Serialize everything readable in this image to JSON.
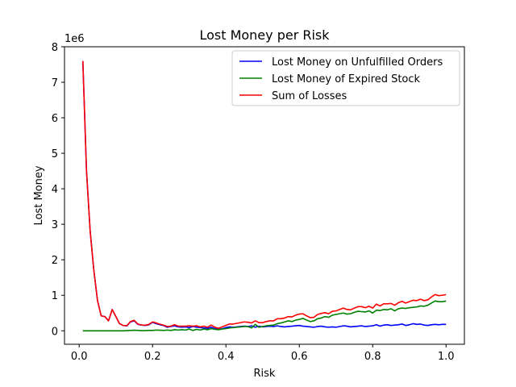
{
  "chart_data": {
    "type": "line",
    "title": "Lost Money per Risk",
    "xlabel": "Risk",
    "ylabel": "Lost Money",
    "y_offset_label": "1e6",
    "xlim": [
      -0.04,
      1.05
    ],
    "ylim": [
      -0.38,
      8.0
    ],
    "x_ticks": [
      0.0,
      0.2,
      0.4,
      0.6,
      0.8,
      1.0
    ],
    "x_tick_labels": [
      "0.0",
      "0.2",
      "0.4",
      "0.6",
      "0.8",
      "1.0"
    ],
    "y_ticks": [
      0,
      1,
      2,
      3,
      4,
      5,
      6,
      7,
      8
    ],
    "y_tick_labels": [
      "0",
      "1",
      "2",
      "3",
      "4",
      "5",
      "6",
      "7",
      "8"
    ],
    "grid": false,
    "legend_position": "top-right",
    "x": [
      0.01,
      0.02,
      0.03,
      0.04,
      0.05,
      0.06,
      0.07,
      0.08,
      0.09,
      0.1,
      0.11,
      0.12,
      0.13,
      0.14,
      0.15,
      0.16,
      0.17,
      0.18,
      0.19,
      0.2,
      0.21,
      0.22,
      0.23,
      0.24,
      0.25,
      0.26,
      0.27,
      0.28,
      0.29,
      0.3,
      0.31,
      0.32,
      0.33,
      0.34,
      0.35,
      0.36,
      0.37,
      0.38,
      0.39,
      0.4,
      0.41,
      0.42,
      0.43,
      0.44,
      0.45,
      0.46,
      0.47,
      0.48,
      0.49,
      0.5,
      0.51,
      0.52,
      0.53,
      0.54,
      0.55,
      0.56,
      0.57,
      0.58,
      0.59,
      0.6,
      0.61,
      0.62,
      0.63,
      0.64,
      0.65,
      0.66,
      0.67,
      0.68,
      0.69,
      0.7,
      0.71,
      0.72,
      0.73,
      0.74,
      0.75,
      0.76,
      0.77,
      0.78,
      0.79,
      0.8,
      0.81,
      0.82,
      0.83,
      0.84,
      0.85,
      0.86,
      0.87,
      0.88,
      0.89,
      0.9,
      0.91,
      0.92,
      0.93,
      0.94,
      0.95,
      0.96,
      0.97,
      0.98,
      0.99,
      1.0
    ],
    "series": [
      {
        "name": "Lost Money on Unfulfilled Orders",
        "color": "#0000ff",
        "values": [
          7.6,
          4.5,
          2.8,
          1.7,
          0.85,
          0.42,
          0.4,
          0.28,
          0.6,
          0.4,
          0.2,
          0.15,
          0.14,
          0.25,
          0.28,
          0.18,
          0.16,
          0.15,
          0.17,
          0.24,
          0.2,
          0.17,
          0.15,
          0.1,
          0.12,
          0.14,
          0.11,
          0.1,
          0.11,
          0.09,
          0.12,
          0.1,
          0.09,
          0.08,
          0.07,
          0.1,
          0.06,
          0.04,
          0.06,
          0.09,
          0.11,
          0.1,
          0.11,
          0.12,
          0.13,
          0.12,
          0.14,
          0.1,
          0.13,
          0.11,
          0.12,
          0.13,
          0.12,
          0.14,
          0.12,
          0.11,
          0.12,
          0.13,
          0.14,
          0.15,
          0.13,
          0.12,
          0.11,
          0.1,
          0.12,
          0.13,
          0.11,
          0.1,
          0.11,
          0.1,
          0.12,
          0.14,
          0.13,
          0.11,
          0.12,
          0.13,
          0.14,
          0.12,
          0.13,
          0.14,
          0.17,
          0.13,
          0.16,
          0.17,
          0.15,
          0.16,
          0.17,
          0.19,
          0.15,
          0.17,
          0.2,
          0.18,
          0.19,
          0.16,
          0.15,
          0.17,
          0.18,
          0.17,
          0.18,
          0.18
        ]
      },
      {
        "name": "Lost Money of Expired Stock",
        "color": "#008000",
        "values": [
          0.0,
          0.0,
          0.0,
          0.0,
          0.0,
          0.0,
          0.0,
          0.0,
          0.0,
          0.0,
          0.0,
          0.0,
          0.005,
          0.01,
          0.015,
          0.01,
          0.005,
          0.005,
          0.01,
          0.01,
          0.02,
          0.015,
          0.01,
          0.02,
          0.01,
          0.03,
          0.02,
          0.03,
          0.02,
          0.05,
          0.01,
          0.04,
          0.02,
          0.05,
          0.03,
          0.06,
          0.04,
          0.03,
          0.05,
          0.06,
          0.08,
          0.09,
          0.1,
          0.11,
          0.12,
          0.12,
          0.08,
          0.18,
          0.1,
          0.12,
          0.14,
          0.15,
          0.16,
          0.2,
          0.22,
          0.25,
          0.28,
          0.26,
          0.3,
          0.32,
          0.35,
          0.3,
          0.26,
          0.28,
          0.34,
          0.36,
          0.4,
          0.38,
          0.44,
          0.46,
          0.48,
          0.5,
          0.47,
          0.48,
          0.52,
          0.55,
          0.54,
          0.53,
          0.56,
          0.5,
          0.58,
          0.57,
          0.6,
          0.59,
          0.62,
          0.56,
          0.62,
          0.64,
          0.63,
          0.65,
          0.66,
          0.67,
          0.7,
          0.69,
          0.72,
          0.78,
          0.84,
          0.82,
          0.82,
          0.84
        ]
      },
      {
        "name": "Sum of Losses",
        "color": "#ff0000",
        "values": [
          7.6,
          4.5,
          2.8,
          1.7,
          0.85,
          0.42,
          0.4,
          0.28,
          0.6,
          0.4,
          0.2,
          0.15,
          0.145,
          0.26,
          0.295,
          0.19,
          0.165,
          0.155,
          0.18,
          0.25,
          0.22,
          0.185,
          0.16,
          0.12,
          0.13,
          0.17,
          0.13,
          0.13,
          0.13,
          0.14,
          0.13,
          0.14,
          0.11,
          0.13,
          0.1,
          0.16,
          0.1,
          0.07,
          0.11,
          0.15,
          0.19,
          0.19,
          0.21,
          0.23,
          0.25,
          0.24,
          0.22,
          0.28,
          0.23,
          0.23,
          0.26,
          0.28,
          0.28,
          0.34,
          0.34,
          0.36,
          0.4,
          0.39,
          0.44,
          0.47,
          0.48,
          0.42,
          0.37,
          0.38,
          0.46,
          0.49,
          0.51,
          0.48,
          0.55,
          0.56,
          0.6,
          0.64,
          0.6,
          0.59,
          0.64,
          0.68,
          0.68,
          0.65,
          0.69,
          0.64,
          0.75,
          0.7,
          0.76,
          0.76,
          0.77,
          0.72,
          0.79,
          0.83,
          0.78,
          0.82,
          0.86,
          0.85,
          0.89,
          0.85,
          0.87,
          0.95,
          1.02,
          0.99,
          1.0,
          1.02
        ]
      }
    ]
  }
}
